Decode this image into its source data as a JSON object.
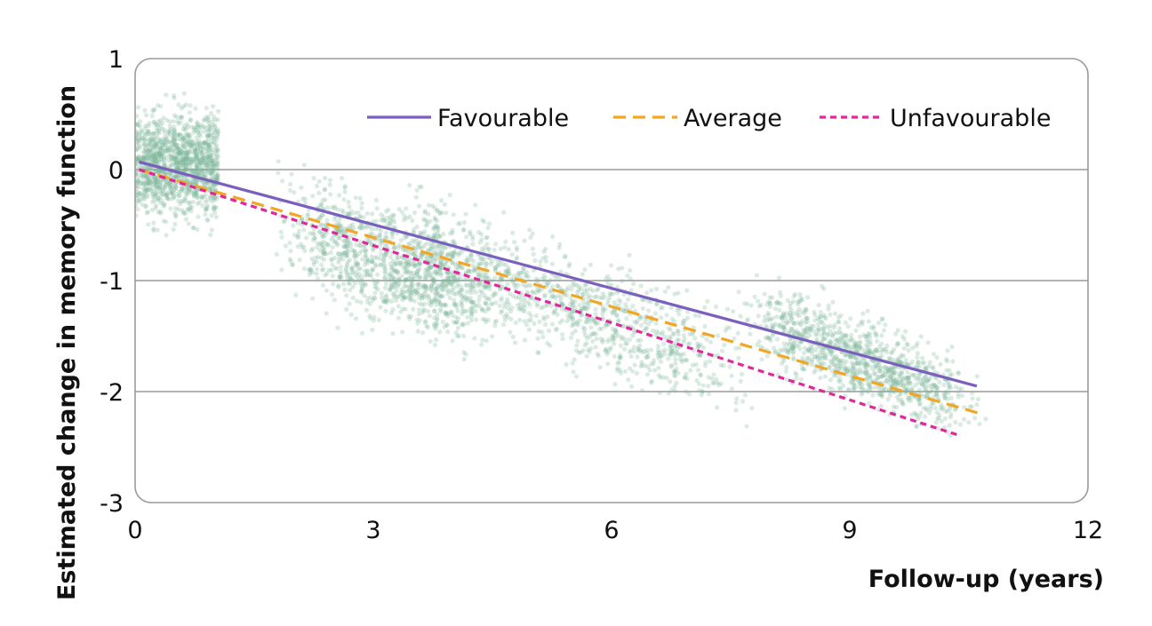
{
  "chart_data": {
    "type": "line",
    "title": "",
    "xlabel": "Follow-up (years)",
    "ylabel": "Estimated change in memory function",
    "xlim": [
      0,
      12
    ],
    "ylim": [
      -3,
      1
    ],
    "xticks": [
      0,
      3,
      6,
      9,
      12
    ],
    "yticks": [
      1,
      0,
      -1,
      -2,
      -3
    ],
    "xtick_labels": [
      "0",
      "3",
      "6",
      "9",
      "12"
    ],
    "ytick_labels": [
      "1",
      "0",
      "-1",
      "-2",
      "-3"
    ],
    "grid": "horizontal at y = 0, -1, -2",
    "legend": {
      "placement": "top-right"
    },
    "series": [
      {
        "name": "Favourable",
        "style": "solid",
        "color": "#7b5fbf",
        "x": [
          0.05,
          10.6
        ],
        "y": [
          0.07,
          -1.95
        ]
      },
      {
        "name": "Average",
        "style": "dashed",
        "color": "#f2a623",
        "x": [
          0.05,
          10.65
        ],
        "y": [
          0.0,
          -2.2
        ]
      },
      {
        "name": "Unfavourable",
        "style": "dotted",
        "color": "#e0289b",
        "x": [
          0.05,
          10.4
        ],
        "y": [
          0.0,
          -2.4
        ]
      }
    ],
    "scatter_clouds": {
      "color": "#7fb79a",
      "note": "dense individual observations",
      "clusters": [
        {
          "x_range": [
            0,
            1.05
          ],
          "y_center": 0.05,
          "y_spread": 0.45
        },
        {
          "x_range": [
            2.2,
            4.2
          ],
          "y_center": -0.85,
          "y_spread": 0.5
        },
        {
          "x_range": [
            3.5,
            7.3
          ],
          "y_center": -1.2,
          "y_spread": 0.45
        },
        {
          "x_range": [
            8.0,
            10.2
          ],
          "y_center": -1.7,
          "y_spread": 0.35
        }
      ]
    }
  }
}
